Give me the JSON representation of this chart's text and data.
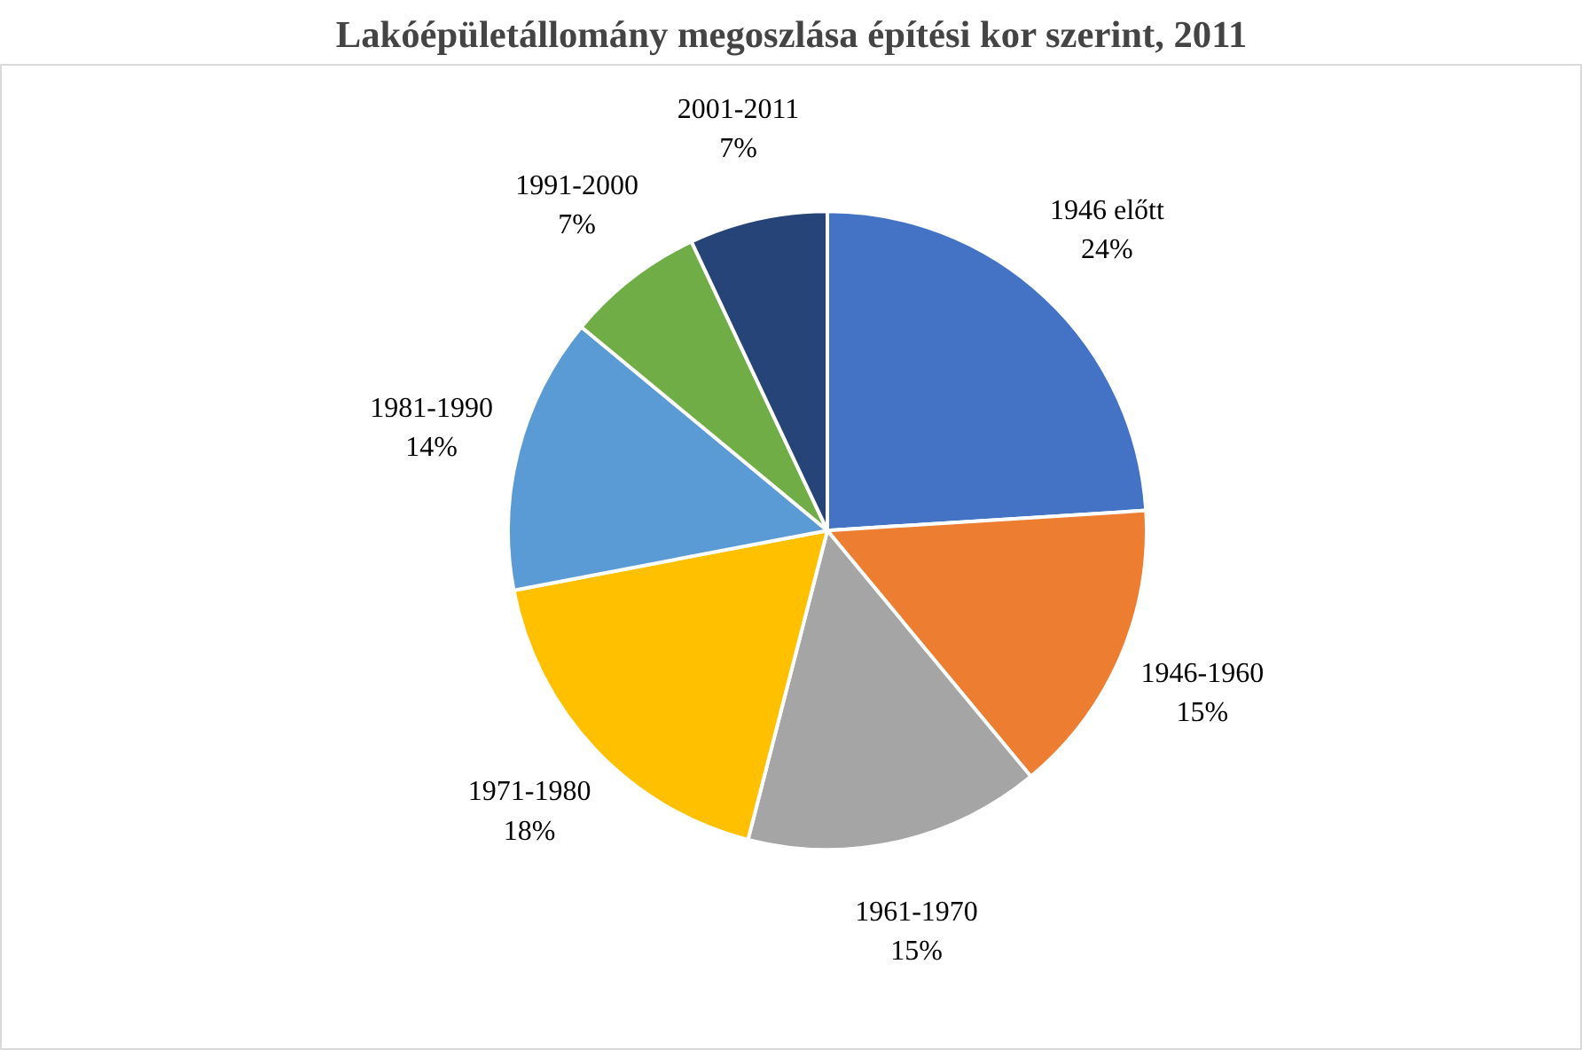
{
  "chart_data": {
    "type": "pie",
    "title": "Lakóépületállomány megoszlása építési kor szerint, 2011",
    "categories": [
      "1946 előtt",
      "1946-1960",
      "1961-1970",
      "1971-1980",
      "1981-1990",
      "1991-2000",
      "2001-2011"
    ],
    "values": [
      24,
      15,
      15,
      18,
      14,
      7,
      7
    ],
    "colors": [
      "#4472c4",
      "#ed7d31",
      "#a5a5a5",
      "#ffc000",
      "#5b9bd5",
      "#70ad47",
      "#264478"
    ],
    "value_labels": [
      "24%",
      "15%",
      "15%",
      "18%",
      "14%",
      "7%",
      "7%"
    ],
    "legend": false
  }
}
